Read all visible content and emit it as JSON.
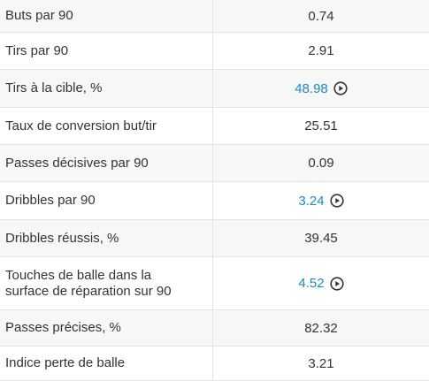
{
  "table": {
    "rows": [
      {
        "label": "Buts par 90",
        "value": 0.74,
        "linked": false
      },
      {
        "label": "Tirs par 90",
        "value": 2.91,
        "linked": false
      },
      {
        "label": "Tirs à la cible, %",
        "value": 48.98,
        "linked": true
      },
      {
        "label": "Taux de conversion but/tir",
        "value": 25.51,
        "linked": false
      },
      {
        "label": "Passes décisives par 90",
        "value": 0.09,
        "linked": false
      },
      {
        "label": "Dribbles par 90",
        "value": 3.24,
        "linked": true
      },
      {
        "label": "Dribbles réussis, %",
        "value": 39.45,
        "linked": false
      },
      {
        "label": "Touches de balle dans la surface de réparation sur 90",
        "value": 4.52,
        "linked": true
      },
      {
        "label": "Passes précises, %",
        "value": 82.32,
        "linked": false
      },
      {
        "label": "Indice perte de balle",
        "value": 3.21,
        "linked": false
      }
    ]
  }
}
